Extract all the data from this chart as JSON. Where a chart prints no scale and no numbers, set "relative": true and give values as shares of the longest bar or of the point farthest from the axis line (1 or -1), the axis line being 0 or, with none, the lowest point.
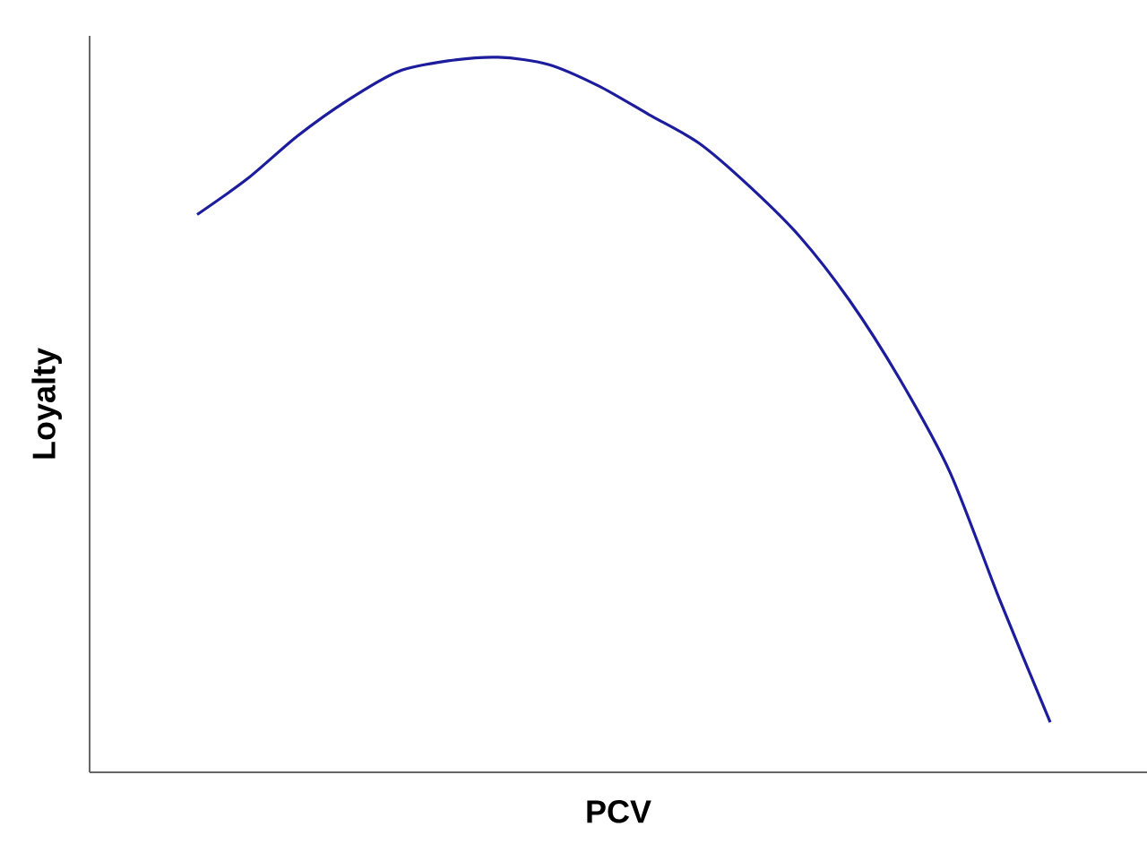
{
  "chart_data": {
    "type": "line",
    "relative": true,
    "xlabel": "PCV",
    "ylabel": "Loyalty",
    "color": "#1c1c9c",
    "categories": [
      null,
      null,
      null,
      null,
      null,
      null,
      null,
      null,
      null,
      null,
      null,
      null,
      null,
      null,
      null,
      null,
      null,
      null
    ],
    "values": [
      0.78,
      0.83,
      0.89,
      0.94,
      0.98,
      0.995,
      1.0,
      0.99,
      0.96,
      0.92,
      0.88,
      0.82,
      0.75,
      0.66,
      0.55,
      0.42,
      0.24,
      0.07
    ]
  }
}
